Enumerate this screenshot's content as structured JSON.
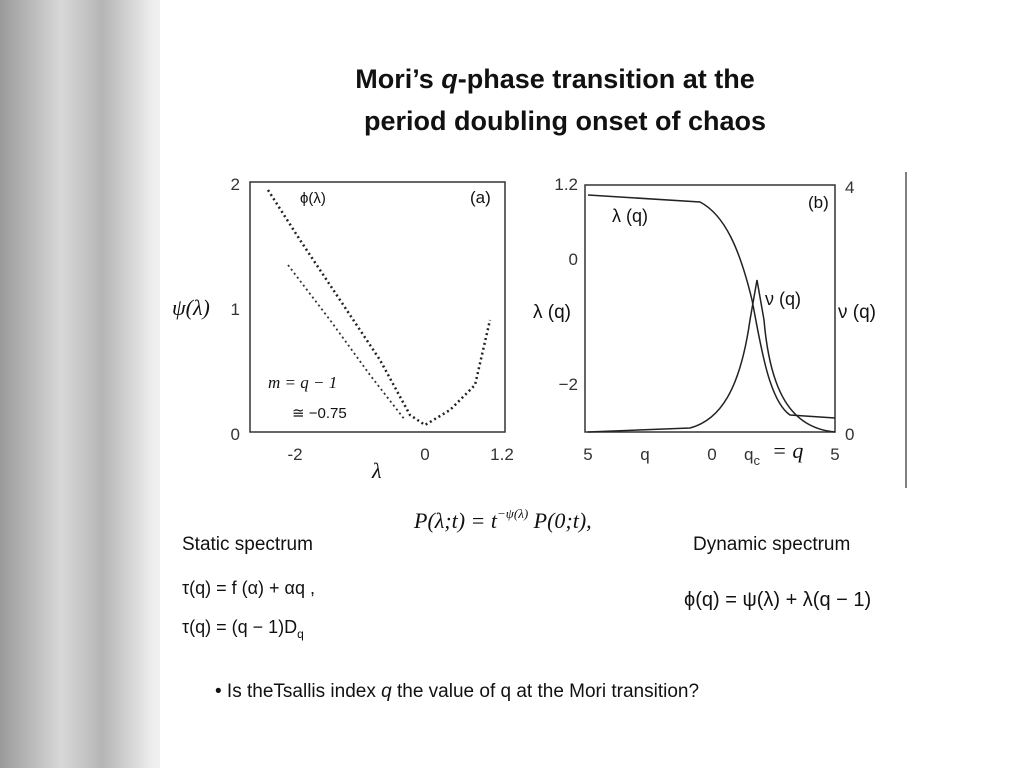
{
  "title": {
    "line1_pre": "Mori’s ",
    "line1_q": "q",
    "line1_post": "-phase transition at the",
    "line2": "period doubling onset of chaos"
  },
  "panel_a": {
    "tag": "(a)",
    "curve_label": "ϕ(λ)",
    "y_label": "ψ(λ)",
    "x_label": "λ",
    "y_ticks": [
      "2",
      "1",
      "0"
    ],
    "x_ticks": [
      "-2",
      "0",
      "1.2"
    ],
    "annotation_1": "m = q − 1",
    "annotation_2": "≅ −0.75"
  },
  "panel_b": {
    "tag": "(b)",
    "curve_label_1": "λ (q)",
    "curve_label_2": "ν (q)",
    "y_label": "λ (q)",
    "y2_label": "ν (q)",
    "y_ticks": [
      "1.2",
      "0",
      "−2"
    ],
    "y2_ticks": [
      "4",
      "0"
    ],
    "x_ticks": [
      "5",
      "q",
      "0",
      "q",
      "5"
    ],
    "x_sub": "c",
    "x_note": "= q"
  },
  "equation_main": "P(λ;t) = t",
  "equation_main_sup": "−ψ(λ)",
  "equation_main_tail": " P(0;t),",
  "static": {
    "label": "Static spectrum",
    "eq_1": "τ(q) = f (α) + αq ,",
    "eq_2": "τ(q) = (q − 1)D",
    "eq_2_sub": "q"
  },
  "dynamic": {
    "label": "Dynamic spectrum",
    "eq": "ϕ(q) = ψ(λ) + λ(q − 1)"
  },
  "bullet": {
    "pre": "• Is theTsallis index ",
    "q": "q",
    "post": " the value of q at the Mori transition?"
  }
}
